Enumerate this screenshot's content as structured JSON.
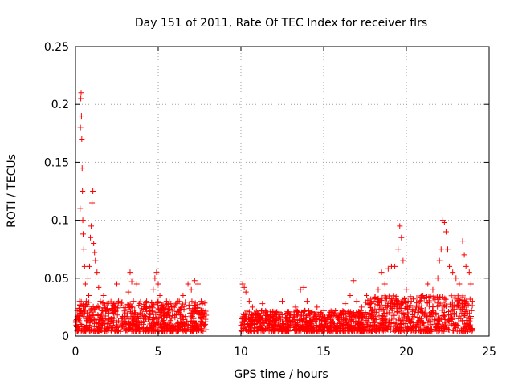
{
  "chart_data": {
    "type": "scatter",
    "title": "Day 151 of 2011, Rate Of TEC Index for receiver flrs",
    "xlabel": "GPS time / hours",
    "ylabel": "ROTI / TECUs",
    "xlim": [
      0,
      25
    ],
    "ylim": [
      0,
      0.25
    ],
    "grid": true,
    "marker": "+",
    "color": "#ff0000",
    "x_ticks": [
      0,
      5,
      10,
      15,
      20,
      25
    ],
    "x_tick_labels": [
      "0",
      "5",
      "10",
      "15",
      "20",
      "25"
    ],
    "y_ticks": [
      0,
      0.05,
      0.1,
      0.15,
      0.2,
      0.25
    ],
    "y_tick_labels": [
      "0",
      "0.05",
      "0.1",
      "0.15",
      "0.2",
      "0.25"
    ],
    "series": [
      {
        "name": "ROTI",
        "points": [
          [
            0.05,
            0.012
          ],
          [
            0.1,
            0.022
          ],
          [
            0.15,
            0.008
          ],
          [
            0.2,
            0.018
          ],
          [
            0.25,
            0.03
          ],
          [
            0.28,
            0.11
          ],
          [
            0.3,
            0.18
          ],
          [
            0.32,
            0.205
          ],
          [
            0.34,
            0.21
          ],
          [
            0.36,
            0.19
          ],
          [
            0.38,
            0.17
          ],
          [
            0.4,
            0.145
          ],
          [
            0.42,
            0.125
          ],
          [
            0.44,
            0.1
          ],
          [
            0.46,
            0.088
          ],
          [
            0.5,
            0.075
          ],
          [
            0.55,
            0.06
          ],
          [
            0.6,
            0.045
          ],
          [
            0.65,
            0.03
          ],
          [
            0.7,
            0.02
          ],
          [
            0.75,
            0.05
          ],
          [
            0.8,
            0.035
          ],
          [
            0.85,
            0.06
          ],
          [
            0.9,
            0.085
          ],
          [
            0.95,
            0.095
          ],
          [
            1.0,
            0.115
          ],
          [
            1.05,
            0.125
          ],
          [
            1.1,
            0.08
          ],
          [
            1.15,
            0.072
          ],
          [
            1.2,
            0.065
          ],
          [
            1.3,
            0.055
          ],
          [
            1.4,
            0.042
          ],
          [
            1.5,
            0.03
          ],
          [
            1.6,
            0.022
          ],
          [
            1.7,
            0.035
          ],
          [
            1.8,
            0.015
          ],
          [
            1.9,
            0.028
          ],
          [
            2.0,
            0.02
          ],
          [
            2.2,
            0.012
          ],
          [
            2.4,
            0.025
          ],
          [
            2.5,
            0.045
          ],
          [
            2.6,
            0.03
          ],
          [
            2.8,
            0.015
          ],
          [
            3.0,
            0.02
          ],
          [
            3.2,
            0.038
          ],
          [
            3.3,
            0.055
          ],
          [
            3.4,
            0.047
          ],
          [
            3.5,
            0.03
          ],
          [
            3.7,
            0.045
          ],
          [
            3.9,
            0.02
          ],
          [
            4.1,
            0.015
          ],
          [
            4.3,
            0.03
          ],
          [
            4.5,
            0.025
          ],
          [
            4.7,
            0.04
          ],
          [
            4.8,
            0.05
          ],
          [
            4.9,
            0.055
          ],
          [
            5.0,
            0.045
          ],
          [
            5.1,
            0.035
          ],
          [
            5.3,
            0.02
          ],
          [
            5.5,
            0.03
          ],
          [
            5.8,
            0.025
          ],
          [
            6.0,
            0.018
          ],
          [
            6.2,
            0.03
          ],
          [
            6.5,
            0.035
          ],
          [
            6.8,
            0.045
          ],
          [
            7.0,
            0.04
          ],
          [
            7.2,
            0.048
          ],
          [
            7.4,
            0.045
          ],
          [
            7.6,
            0.03
          ],
          [
            7.8,
            0.02
          ],
          [
            7.9,
            0.018
          ],
          [
            10.1,
            0.045
          ],
          [
            10.2,
            0.042
          ],
          [
            10.3,
            0.038
          ],
          [
            10.5,
            0.03
          ],
          [
            10.7,
            0.025
          ],
          [
            11.0,
            0.02
          ],
          [
            11.3,
            0.028
          ],
          [
            11.5,
            0.015
          ],
          [
            11.8,
            0.018
          ],
          [
            12.0,
            0.012
          ],
          [
            12.3,
            0.02
          ],
          [
            12.5,
            0.03
          ],
          [
            12.8,
            0.015
          ],
          [
            13.0,
            0.018
          ],
          [
            13.3,
            0.025
          ],
          [
            13.6,
            0.04
          ],
          [
            13.8,
            0.042
          ],
          [
            14.0,
            0.03
          ],
          [
            14.3,
            0.02
          ],
          [
            14.6,
            0.025
          ],
          [
            15.0,
            0.015
          ],
          [
            15.3,
            0.018
          ],
          [
            15.6,
            0.012
          ],
          [
            16.0,
            0.02
          ],
          [
            16.3,
            0.028
          ],
          [
            16.6,
            0.035
          ],
          [
            16.8,
            0.048
          ],
          [
            17.0,
            0.03
          ],
          [
            17.3,
            0.025
          ],
          [
            17.6,
            0.035
          ],
          [
            17.8,
            0.028
          ],
          [
            18.0,
            0.03
          ],
          [
            18.3,
            0.04
          ],
          [
            18.5,
            0.055
          ],
          [
            18.7,
            0.045
          ],
          [
            18.9,
            0.058
          ],
          [
            19.1,
            0.06
          ],
          [
            19.3,
            0.06
          ],
          [
            19.5,
            0.075
          ],
          [
            19.6,
            0.095
          ],
          [
            19.7,
            0.085
          ],
          [
            19.8,
            0.065
          ],
          [
            20.0,
            0.04
          ],
          [
            20.3,
            0.03
          ],
          [
            20.6,
            0.025
          ],
          [
            21.0,
            0.035
          ],
          [
            21.3,
            0.045
          ],
          [
            21.6,
            0.04
          ],
          [
            21.9,
            0.05
          ],
          [
            22.0,
            0.065
          ],
          [
            22.1,
            0.075
          ],
          [
            22.2,
            0.1
          ],
          [
            22.3,
            0.098
          ],
          [
            22.4,
            0.09
          ],
          [
            22.5,
            0.075
          ],
          [
            22.6,
            0.06
          ],
          [
            22.8,
            0.055
          ],
          [
            23.0,
            0.05
          ],
          [
            23.2,
            0.045
          ],
          [
            23.4,
            0.082
          ],
          [
            23.5,
            0.07
          ],
          [
            23.6,
            0.06
          ],
          [
            23.8,
            0.055
          ],
          [
            23.9,
            0.045
          ],
          [
            24.0,
            0.03
          ]
        ]
      }
    ],
    "bands": [
      {
        "x_start": 0.0,
        "x_end": 7.9,
        "low": 0.004,
        "high": 0.03
      },
      {
        "x_start": 10.0,
        "x_end": 17.5,
        "low": 0.004,
        "high": 0.022
      },
      {
        "x_start": 17.5,
        "x_end": 24.0,
        "low": 0.004,
        "high": 0.035
      }
    ]
  }
}
